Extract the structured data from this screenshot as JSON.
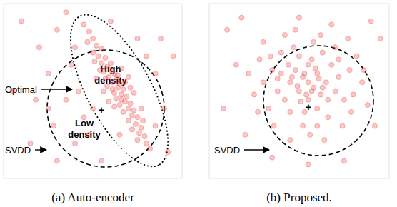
{
  "chart_data": [
    {
      "type": "scatter",
      "title": "(a) Auto-encoder",
      "color": "#e83030",
      "marker": "circle",
      "tick_labels": false,
      "xlim": [
        0,
        100
      ],
      "ylim": [
        0,
        100
      ],
      "annotations": [
        "Optimal",
        "High density",
        "Low density",
        "SVDD",
        "+"
      ],
      "x": [
        45,
        48,
        50,
        47,
        52,
        55,
        50,
        53,
        57,
        55,
        58,
        60,
        56,
        62,
        59,
        63,
        61,
        65,
        58,
        64,
        67,
        62,
        66,
        69,
        63,
        68,
        71,
        65,
        70,
        73,
        67,
        72,
        75,
        70,
        74,
        77,
        72,
        76,
        79,
        75,
        80,
        82,
        60,
        57,
        61,
        66,
        54,
        51,
        64,
        68,
        73,
        59,
        77,
        56,
        70,
        62,
        52,
        66,
        78,
        71,
        10,
        20,
        25,
        30,
        35,
        28,
        15,
        40,
        45,
        38,
        42,
        85,
        90,
        88,
        92,
        30,
        55,
        95,
        60,
        75,
        35,
        5,
        18,
        48,
        85,
        80,
        65,
        40,
        25,
        50
      ],
      "y": [
        88,
        84,
        80,
        78,
        76,
        74,
        72,
        70,
        69,
        66,
        64,
        62,
        61,
        60,
        58,
        57,
        55,
        54,
        53,
        52,
        51,
        49,
        48,
        47,
        46,
        44,
        43,
        42,
        40,
        39,
        38,
        36,
        35,
        33,
        31,
        29,
        28,
        26,
        24,
        22,
        20,
        17,
        66,
        57,
        51,
        45,
        62,
        67,
        59,
        55,
        49,
        44,
        40,
        50,
        58,
        41,
        57,
        63,
        33,
        52,
        90,
        75,
        60,
        85,
        45,
        30,
        20,
        20,
        35,
        65,
        50,
        60,
        40,
        80,
        15,
        10,
        10,
        70,
        90,
        80,
        95,
        50,
        45,
        25,
        30,
        70,
        25,
        75,
        40,
        40
      ]
    },
    {
      "type": "scatter",
      "title": "(b) Proposed.",
      "color": "#e83030",
      "marker": "circle",
      "tick_labels": false,
      "xlim": [
        0,
        100
      ],
      "ylim": [
        0,
        100
      ],
      "annotations": [
        "SVDD",
        "+"
      ],
      "x": [
        55,
        52,
        58,
        50,
        60,
        48,
        62,
        45,
        65,
        55,
        55,
        40,
        70,
        42,
        68,
        50,
        60,
        38,
        72,
        47,
        63,
        35,
        75,
        45,
        66,
        58,
        30,
        78,
        40,
        70,
        52,
        33,
        80,
        62,
        28,
        36,
        74,
        48,
        82,
        25,
        56,
        85,
        42,
        68,
        22,
        30,
        77,
        64,
        45,
        88,
        53,
        57,
        61,
        49,
        54,
        59,
        46,
        63,
        51,
        57,
        44,
        66,
        38,
        72,
        53,
        34,
        79,
        60,
        27,
        86,
        50,
        15,
        92,
        20,
        75,
        10,
        95,
        35,
        90,
        8,
        55,
        18
      ],
      "y": [
        55,
        58,
        52,
        50,
        60,
        62,
        48,
        55,
        55,
        45,
        65,
        60,
        50,
        45,
        65,
        70,
        40,
        50,
        58,
        75,
        72,
        62,
        45,
        38,
        35,
        78,
        55,
        62,
        72,
        75,
        30,
        40,
        48,
        82,
        68,
        30,
        30,
        85,
        70,
        48,
        25,
        55,
        82,
        88,
        60,
        78,
        80,
        22,
        22,
        42,
        60,
        50,
        57,
        53,
        48,
        63,
        58,
        52,
        44,
        68,
        65,
        45,
        57,
        68,
        38,
        70,
        38,
        30,
        38,
        62,
        92,
        65,
        30,
        25,
        10,
        85,
        80,
        12,
        90,
        40,
        8,
        92
      ]
    }
  ]
}
